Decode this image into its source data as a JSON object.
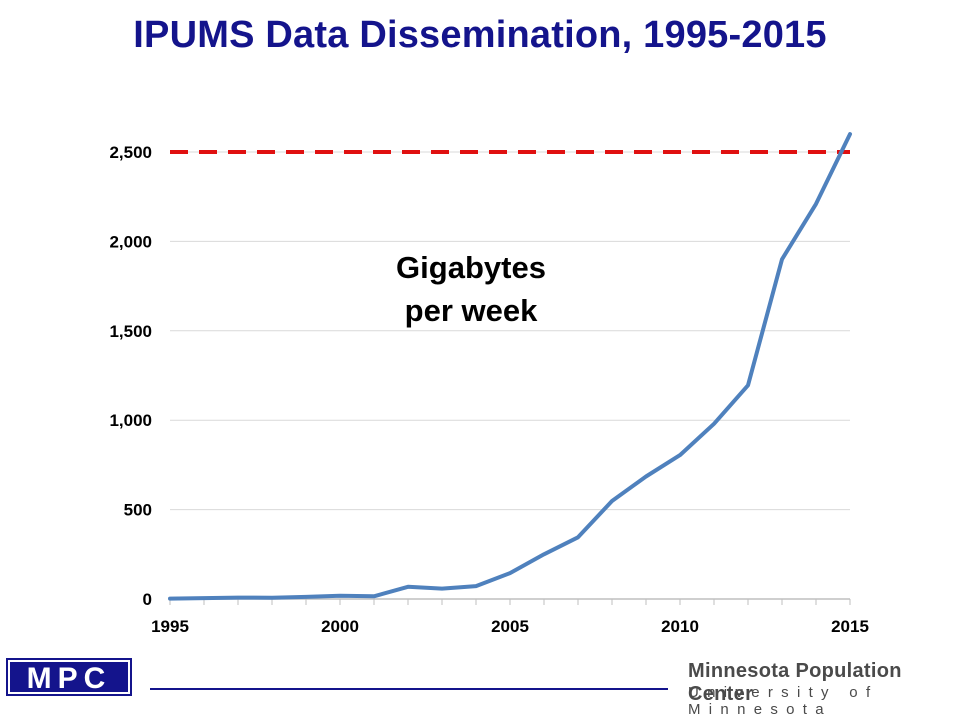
{
  "chart_data": {
    "type": "line",
    "title": "IPUMS Data Dissemination, 1995-2015",
    "annotation": [
      "Gigabytes",
      "per week"
    ],
    "xlabel": "",
    "ylabel": "",
    "x": [
      1995,
      1996,
      1997,
      1998,
      1999,
      2000,
      2001,
      2002,
      2003,
      2004,
      2005,
      2006,
      2007,
      2008,
      2009,
      2010,
      2011,
      2012,
      2013,
      2014,
      2015
    ],
    "series": [
      {
        "values": [
          2,
          5,
          8,
          7,
          12,
          18,
          15,
          68,
          58,
          72,
          145,
          250,
          345,
          548,
          685,
          805,
          980,
          1195,
          1900,
          2210,
          2600
        ]
      }
    ],
    "xlim": [
      1995,
      2015
    ],
    "ylim": [
      0,
      2500
    ],
    "x_ticks": [
      1995,
      2000,
      2005,
      2010,
      2015
    ],
    "x_tick_labels": [
      "1995",
      "2000",
      "2005",
      "2010",
      "2015"
    ],
    "y_ticks": [
      0,
      500,
      1000,
      1500,
      2000,
      2500
    ],
    "y_tick_labels": [
      "0",
      "500",
      "1,000",
      "1,500",
      "2,000",
      "2,500"
    ],
    "reference_line": {
      "value": 2500,
      "style": "dashed",
      "color": "#e01010"
    },
    "grid": true,
    "colors": {
      "line": "#4f81bd",
      "title": "#14148c",
      "grid": "#d9d9d9"
    }
  },
  "footer": {
    "logo_text": "MPC",
    "center_name": "Minnesota Population Center",
    "university": "University of Minnesota"
  }
}
